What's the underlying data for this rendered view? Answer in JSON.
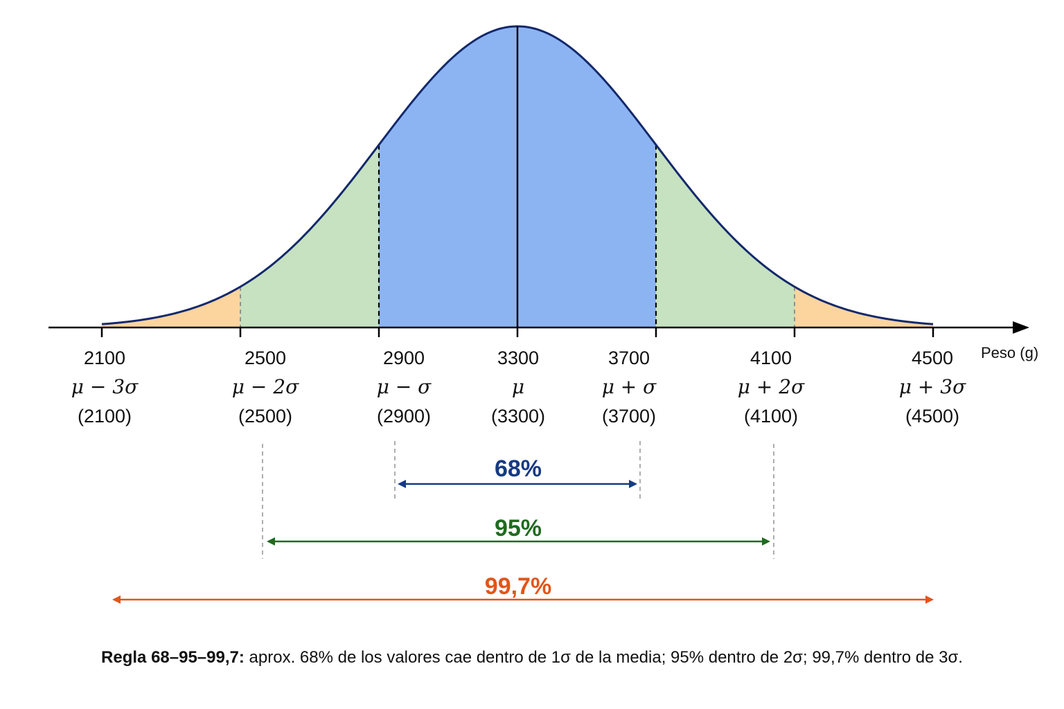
{
  "chart_data": {
    "type": "area",
    "distribution": "normal",
    "mean": 3300,
    "sd": 400,
    "x_range": [
      2100,
      4500
    ],
    "xlabel": "Peso (g)",
    "ticks": [
      {
        "value": "2100",
        "symbol": "μ − 3σ",
        "paren": "(2100)"
      },
      {
        "value": "2500",
        "symbol": "μ − 2σ",
        "paren": "(2500)"
      },
      {
        "value": "2900",
        "symbol": "μ − σ",
        "paren": "(2900)"
      },
      {
        "value": "3300",
        "symbol": "μ",
        "paren": "(3300)"
      },
      {
        "value": "3700",
        "symbol": "μ + σ",
        "paren": "(3700)"
      },
      {
        "value": "4100",
        "symbol": "μ + 2σ",
        "paren": "(4100)"
      },
      {
        "value": "4500",
        "symbol": "μ + 3σ",
        "paren": "(4500)"
      }
    ],
    "bands": [
      {
        "from": 2900,
        "to": 3700,
        "color": "#8db4f2"
      },
      {
        "from": 2500,
        "to": 2900,
        "color": "#c6e2c0"
      },
      {
        "from": 3700,
        "to": 4100,
        "color": "#c6e2c0"
      },
      {
        "from": 2100,
        "to": 2500,
        "color": "#fcd49e"
      },
      {
        "from": 4100,
        "to": 4500,
        "color": "#fcd49e"
      }
    ],
    "intervals": [
      {
        "label": "68%",
        "from": 2900,
        "to": 3700,
        "color": "#163a84"
      },
      {
        "label": "95%",
        "from": 2500,
        "to": 4100,
        "color": "#1e6b1e"
      },
      {
        "label": "99,7%",
        "from": 2100,
        "to": 4500,
        "color": "#e0561b"
      }
    ],
    "curve_color": "#13296b"
  },
  "caption": {
    "bold": "Regla 68–95–99,7:",
    "text": " aprox. 68% de los valores cae dentro de 1σ de la media; 95% dentro de 2σ; 99,7% dentro de 3σ."
  }
}
